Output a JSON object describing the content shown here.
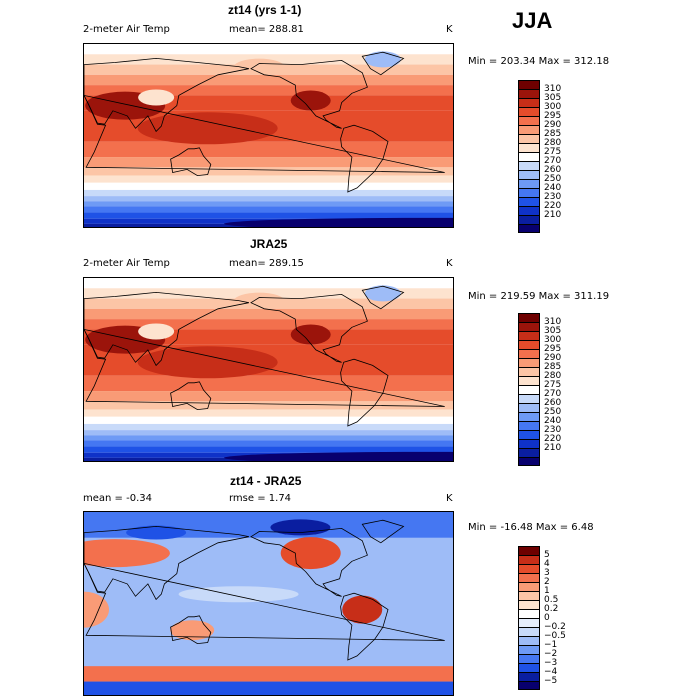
{
  "season": "JJA",
  "colors": {
    "temp": [
      "#08006e",
      "#0a1ea0",
      "#0f32c8",
      "#1f52e6",
      "#4577f2",
      "#6e9af5",
      "#9ebcf7",
      "#c8daf9",
      "#ffffff",
      "#fde3cf",
      "#fcc5a6",
      "#f99b76",
      "#f3704d",
      "#e54c2b",
      "#c72e18",
      "#9b140b",
      "#6e0000"
    ],
    "diff": [
      "#08006e",
      "#0a1ea0",
      "#1f52e6",
      "#4577f2",
      "#6e9af5",
      "#9ebcf7",
      "#c8daf9",
      "#e6eefc",
      "#ffffff",
      "#fde3cf",
      "#fcc5a6",
      "#f99b76",
      "#f3704d",
      "#e54c2b",
      "#c72e18",
      "#6e0000"
    ],
    "ocean_top": "#e54c2b",
    "land_hot": "#c72e18",
    "coast": "#000000"
  },
  "panels": [
    {
      "title": "zt14 (yrs 1-1)",
      "field": "2-meter Air Temp",
      "stat": "mean= 288.81",
      "units": "K",
      "minmax": "Min = 203.34 Max = 312.18",
      "scale": "temp"
    },
    {
      "title": "JRA25",
      "field": "2-meter Air Temp",
      "stat": "mean= 289.15",
      "units": "K",
      "minmax": "Min = 219.59 Max = 311.19",
      "scale": "temp"
    },
    {
      "title": "zt14 - JRA25",
      "field": "mean =   -0.34",
      "stat": "rmse =    1.74",
      "units": "K",
      "minmax": "Min = -16.48 Max =    6.48",
      "scale": "diff"
    }
  ],
  "chart_data": [
    {
      "type": "heatmap",
      "title": "zt14 (yrs 1-1)",
      "variable": "2-meter Air Temp",
      "units": "K",
      "mean": 288.81,
      "min": 203.34,
      "max": 312.18,
      "colorbar_levels": [
        210,
        220,
        230,
        240,
        250,
        260,
        270,
        275,
        280,
        285,
        290,
        295,
        300,
        305,
        310
      ],
      "colorbar_labels": [
        "310",
        "305",
        "300",
        "295",
        "290",
        "285",
        "280",
        "275",
        "270",
        "260",
        "250",
        "240",
        "230",
        "220",
        "210"
      ]
    },
    {
      "type": "heatmap",
      "title": "JRA25",
      "variable": "2-meter Air Temp",
      "units": "K",
      "mean": 289.15,
      "min": 219.59,
      "max": 311.19,
      "colorbar_levels": [
        210,
        220,
        230,
        240,
        250,
        260,
        270,
        275,
        280,
        285,
        290,
        295,
        300,
        305,
        310
      ],
      "colorbar_labels": [
        "310",
        "305",
        "300",
        "295",
        "290",
        "285",
        "280",
        "275",
        "270",
        "260",
        "250",
        "240",
        "230",
        "220",
        "210"
      ]
    },
    {
      "type": "heatmap",
      "title": "zt14 - JRA25",
      "units": "K",
      "mean": -0.34,
      "rmse": 1.74,
      "min": -16.48,
      "max": 6.48,
      "colorbar_levels": [
        -5,
        -4,
        -3,
        -2,
        -1,
        -0.5,
        -0.2,
        0,
        0.2,
        0.5,
        1,
        2,
        3,
        4,
        5
      ],
      "colorbar_labels": [
        "5",
        "4",
        "3",
        "2",
        "1",
        "0.5",
        "0.2",
        "0",
        "−0.2",
        "−0.5",
        "−1",
        "−2",
        "−3",
        "−4",
        "−5"
      ]
    }
  ]
}
